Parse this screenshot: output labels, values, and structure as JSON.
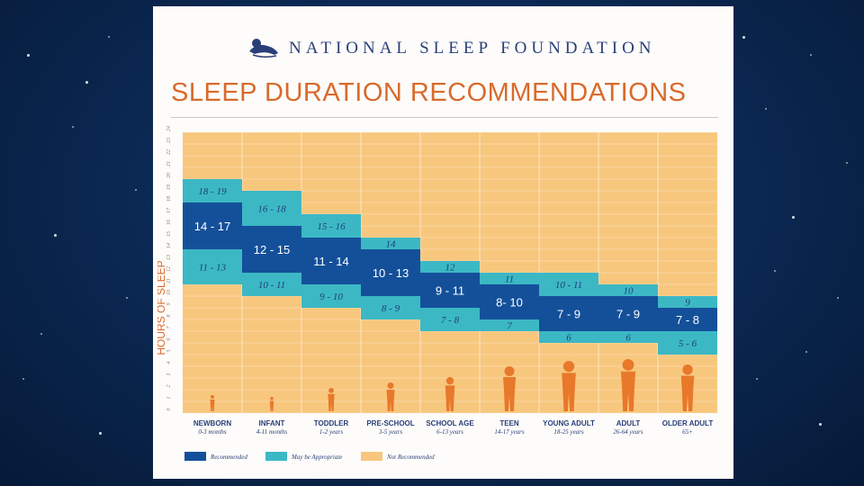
{
  "brand": {
    "name": "NATIONAL SLEEP FOUNDATION",
    "logo_icon": "sleeping-figure-logo"
  },
  "chart_data": {
    "type": "bar",
    "title": "SLEEP DURATION RECOMMENDATIONS",
    "ylabel": "HOURS OF SLEEP",
    "ylim": [
      0,
      24
    ],
    "yticks": [
      "0",
      "1",
      "2",
      "3",
      "4",
      "5",
      "6",
      "7",
      "8",
      "9",
      "10",
      "11",
      "12",
      "13",
      "14",
      "15",
      "16",
      "17",
      "18",
      "19",
      "20",
      "21",
      "22",
      "23",
      "24"
    ],
    "categories": [
      {
        "name": "NEWBORN",
        "sub": "0-3 months",
        "rec": [
          14,
          17
        ],
        "rec_label": "14 - 17",
        "may_low": [
          11,
          13
        ],
        "may_low_label": "11 - 13",
        "may_high": [
          18,
          19
        ],
        "may_high_label": "18 - 19"
      },
      {
        "name": "INFANT",
        "sub": "4-11 months",
        "rec": [
          12,
          15
        ],
        "rec_label": "12 - 15",
        "may_low": [
          10,
          11
        ],
        "may_low_label": "10 - 11",
        "may_high": [
          16,
          18
        ],
        "may_high_label": "16 - 18"
      },
      {
        "name": "TODDLER",
        "sub": "1-2 years",
        "rec": [
          11,
          14
        ],
        "rec_label": "11 - 14",
        "may_low": [
          9,
          10
        ],
        "may_low_label": "9 - 10",
        "may_high": [
          15,
          16
        ],
        "may_high_label": "15 - 16"
      },
      {
        "name": "PRE-SCHOOL",
        "sub": "3-5 years",
        "rec": [
          10,
          13
        ],
        "rec_label": "10 - 13",
        "may_low": [
          8,
          9
        ],
        "may_low_label": "8 - 9",
        "may_high": [
          14,
          14
        ],
        "may_high_label": "14"
      },
      {
        "name": "SCHOOL AGE",
        "sub": "6-13 years",
        "rec": [
          9,
          11
        ],
        "rec_label": "9 - 11",
        "may_low": [
          7,
          8
        ],
        "may_low_label": "7 - 8",
        "may_high": [
          12,
          12
        ],
        "may_high_label": "12"
      },
      {
        "name": "TEEN",
        "sub": "14-17 years",
        "rec": [
          8,
          10
        ],
        "rec_label": "8- 10",
        "may_low": [
          7,
          7
        ],
        "may_low_label": "7",
        "may_high": [
          11,
          11
        ],
        "may_high_label": "11"
      },
      {
        "name": "YOUNG ADULT",
        "sub": "18-25 years",
        "rec": [
          7,
          9
        ],
        "rec_label": "7 - 9",
        "may_low": [
          6,
          6
        ],
        "may_low_label": "6",
        "may_high": [
          10,
          11
        ],
        "may_high_label": "10 - 11"
      },
      {
        "name": "ADULT",
        "sub": "26-64 years",
        "rec": [
          7,
          9
        ],
        "rec_label": "7 - 9",
        "may_low": [
          6,
          6
        ],
        "may_low_label": "6",
        "may_high": [
          10,
          10
        ],
        "may_high_label": "10"
      },
      {
        "name": "OLDER ADULT",
        "sub": "65+",
        "rec": [
          7,
          8
        ],
        "rec_label": "7 - 8",
        "may_low": [
          5,
          6
        ],
        "may_low_label": "5 - 6",
        "may_high": [
          9,
          9
        ],
        "may_high_label": "9"
      }
    ],
    "legend": [
      {
        "label": "Recommended",
        "color": "#14509a"
      },
      {
        "label": "May be Appropriate",
        "color": "#3cb8c4"
      },
      {
        "label": "Not Recommended",
        "color": "#f8c77e"
      }
    ],
    "legend_position": "bottom-left",
    "grid": true
  },
  "colors": {
    "title": "#d96a2c",
    "brand": "#2a3f78",
    "silhouette": "#e8782a",
    "grid_bg": "#f8c77e"
  }
}
